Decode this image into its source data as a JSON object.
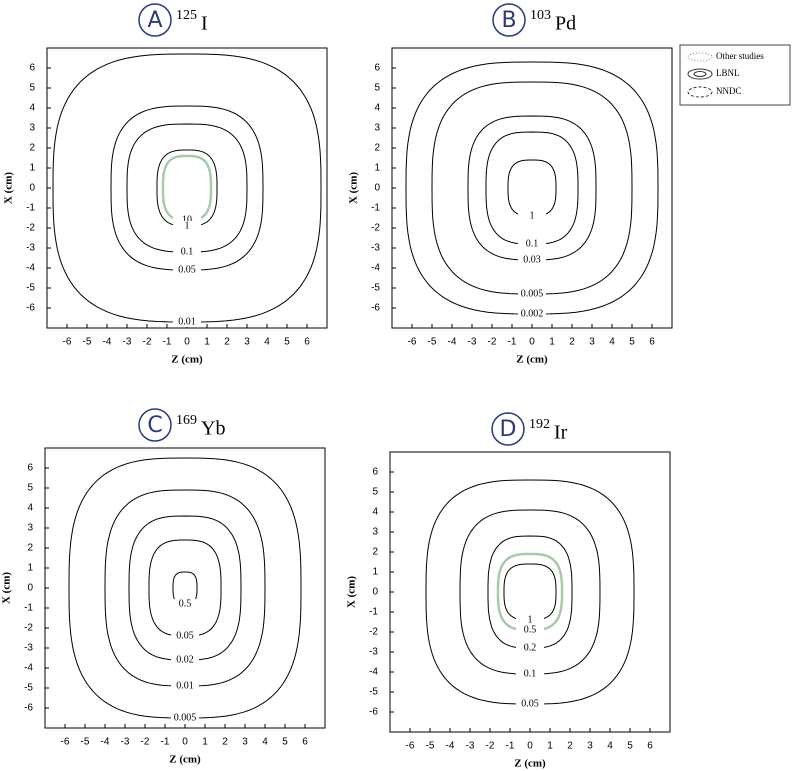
{
  "chart_data": [
    {
      "type": "contour",
      "label": "A",
      "isotope_mass": "125",
      "isotope": "I",
      "xlabel": "Z (cm)",
      "ylabel": "X (cm)",
      "xlim": [
        -7,
        7
      ],
      "ylim": [
        -7,
        7
      ],
      "xticks": [
        -6,
        -5,
        -4,
        -3,
        -2,
        -1,
        0,
        1,
        2,
        3,
        4,
        5,
        6
      ],
      "yticks": [
        6,
        5,
        4,
        3,
        2,
        1,
        0,
        -1,
        -2,
        -3,
        -4,
        -5,
        -6
      ],
      "contours": [
        {
          "level": 10,
          "z_radius": 1.2,
          "x_radius": 1.6,
          "color": "#a9c9ac"
        },
        {
          "level": 1,
          "z_radius": 1.5,
          "x_radius": 1.9,
          "color": "#000000"
        },
        {
          "level": 0.1,
          "z_radius": 3.0,
          "x_radius": 3.2,
          "color": "#000000"
        },
        {
          "level": 0.05,
          "z_radius": 3.8,
          "x_radius": 4.1,
          "color": "#000000"
        },
        {
          "level": 0.01,
          "z_radius": 6.7,
          "x_radius": 6.7,
          "color": "#000000"
        }
      ]
    },
    {
      "type": "contour",
      "label": "B",
      "isotope_mass": "103",
      "isotope": "Pd",
      "xlabel": "Z (cm)",
      "ylabel": "X (cm)",
      "xlim": [
        -7,
        7
      ],
      "ylim": [
        -7,
        7
      ],
      "xticks": [
        -6,
        -5,
        -4,
        -3,
        -2,
        -1,
        0,
        1,
        2,
        3,
        4,
        5,
        6
      ],
      "yticks": [
        6,
        5,
        4,
        3,
        2,
        1,
        0,
        -1,
        -2,
        -3,
        -4,
        -5,
        -6
      ],
      "contours": [
        {
          "level": 1,
          "z_radius": 1.2,
          "x_radius": 1.4,
          "color": "#000000"
        },
        {
          "level": 0.1,
          "z_radius": 2.3,
          "x_radius": 2.8,
          "color": "#000000"
        },
        {
          "level": 0.03,
          "z_radius": 3.2,
          "x_radius": 3.6,
          "color": "#000000"
        },
        {
          "level": 0.005,
          "z_radius": 5.0,
          "x_radius": 5.3,
          "color": "#000000"
        },
        {
          "level": 0.002,
          "z_radius": 6.3,
          "x_radius": 6.3,
          "color": "#000000"
        }
      ]
    },
    {
      "type": "contour",
      "label": "C",
      "isotope_mass": "169",
      "isotope": "Yb",
      "xlabel": "Z (cm)",
      "ylabel": "X (cm)",
      "xlim": [
        -7,
        7
      ],
      "ylim": [
        -7,
        7
      ],
      "xticks": [
        -6,
        -5,
        -4,
        -3,
        -2,
        -1,
        0,
        1,
        2,
        3,
        4,
        5,
        6
      ],
      "yticks": [
        6,
        5,
        4,
        3,
        2,
        1,
        0,
        -1,
        -2,
        -3,
        -4,
        -5,
        -6
      ],
      "contours": [
        {
          "level": 0.5,
          "z_radius": 0.6,
          "x_radius": 0.8,
          "color": "#000000"
        },
        {
          "level": 0.05,
          "z_radius": 1.8,
          "x_radius": 2.4,
          "color": "#000000"
        },
        {
          "level": 0.02,
          "z_radius": 2.8,
          "x_radius": 3.6,
          "color": "#000000"
        },
        {
          "level": 0.01,
          "z_radius": 4.0,
          "x_radius": 4.9,
          "color": "#000000"
        },
        {
          "level": 0.005,
          "z_radius": 5.8,
          "x_radius": 6.5,
          "color": "#000000"
        }
      ]
    },
    {
      "type": "contour",
      "label": "D",
      "isotope_mass": "192",
      "isotope": "Ir",
      "xlabel": "Z (cm)",
      "ylabel": "X (cm)",
      "xlim": [
        -7,
        7
      ],
      "ylim": [
        -7,
        7
      ],
      "xticks": [
        -6,
        -5,
        -4,
        -3,
        -2,
        -1,
        0,
        1,
        2,
        3,
        4,
        5,
        6
      ],
      "yticks": [
        6,
        5,
        4,
        3,
        2,
        1,
        0,
        -1,
        -2,
        -3,
        -4,
        -5,
        -6
      ],
      "contours": [
        {
          "level": 1,
          "z_radius": 1.3,
          "x_radius": 1.4,
          "color": "#000000"
        },
        {
          "level": 0.5,
          "z_radius": 1.6,
          "x_radius": 1.9,
          "color": "#a9c9ac"
        },
        {
          "level": 0.2,
          "z_radius": 2.1,
          "x_radius": 2.8,
          "color": "#000000"
        },
        {
          "level": 0.1,
          "z_radius": 3.5,
          "x_radius": 4.1,
          "color": "#000000"
        },
        {
          "level": 0.05,
          "z_radius": 5.2,
          "x_radius": 5.6,
          "color": "#000000"
        }
      ]
    }
  ],
  "legend": {
    "entries": [
      "Other studies",
      "LBNL",
      "NNDC"
    ]
  }
}
